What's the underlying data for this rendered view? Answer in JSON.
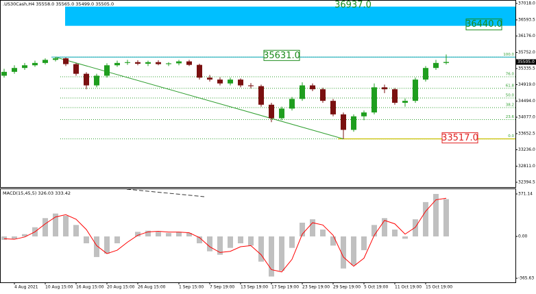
{
  "header": {
    "symbol_info": ".US30Cash,H4  35558.0 35565.0 35499.0 35505.0"
  },
  "chart_data": [
    {
      "type": "candlestick",
      "categories": [
        null,
        "4 Aug 2021",
        null,
        null,
        "10 Aug 15:00",
        null,
        null,
        "16 Aug 15:00",
        null,
        null,
        "20 Aug 15:00",
        null,
        null,
        "26 Aug 15:00",
        null,
        null,
        null,
        "1 Sep 15:00",
        null,
        null,
        "7 Sep 19:00",
        null,
        null,
        "13 Sep 19:00",
        null,
        null,
        "17 Sep 19:00",
        null,
        null,
        "23 Sep 19:00",
        null,
        null,
        "29 Sep 19:00",
        null,
        null,
        "5 Oct 19:00",
        null,
        null,
        "11 Oct 19:00",
        null,
        null,
        "15 Oct 19:00",
        null,
        null
      ],
      "open": [
        35150,
        35250,
        35350,
        35420,
        35480,
        35560,
        35600,
        35450,
        35200,
        34900,
        35150,
        35420,
        35480,
        35500,
        35460,
        35500,
        35450,
        35470,
        35520,
        35430,
        35100,
        35050,
        34950,
        35050,
        34900,
        34880,
        34400,
        34050,
        34300,
        34550,
        34900,
        34800,
        34500,
        34150,
        33750,
        34100,
        34200,
        34850,
        34800,
        34450,
        34500,
        35050,
        35350,
        35480
      ],
      "high": [
        35330,
        35420,
        35480,
        35540,
        35600,
        35631,
        35620,
        35480,
        35240,
        35200,
        35470,
        35540,
        35560,
        35550,
        35540,
        35550,
        35500,
        35560,
        35560,
        35460,
        35170,
        35110,
        35100,
        35080,
        34960,
        34920,
        34450,
        34350,
        34600,
        34980,
        34950,
        34840,
        34550,
        34200,
        34150,
        34250,
        34950,
        34920,
        34830,
        34560,
        35100,
        35400,
        35560,
        35700
      ],
      "low": [
        35100,
        35200,
        35300,
        35380,
        35440,
        35520,
        35400,
        35150,
        34800,
        34850,
        35100,
        35380,
        35430,
        35420,
        35400,
        35420,
        35400,
        35420,
        35400,
        35050,
        35000,
        34900,
        34900,
        34850,
        34820,
        34350,
        33950,
        34000,
        34250,
        34500,
        34750,
        34450,
        34100,
        33517,
        33700,
        34000,
        34150,
        34700,
        34400,
        34350,
        34450,
        35000,
        35300,
        35440
      ],
      "close": [
        35250,
        35350,
        35420,
        35480,
        35560,
        35600,
        35450,
        35200,
        34900,
        35150,
        35420,
        35480,
        35500,
        35460,
        35500,
        35450,
        35470,
        35520,
        35430,
        35100,
        35050,
        34950,
        35050,
        34900,
        34880,
        34400,
        34050,
        34300,
        34550,
        34900,
        34800,
        34500,
        34150,
        33750,
        34100,
        34200,
        34850,
        34800,
        34450,
        34500,
        35050,
        35350,
        35480,
        35505
      ],
      "up_color": "#1f9e1f",
      "down_color": "#7a1010",
      "ylim": [
        32270,
        37090
      ],
      "yticks": [
        {
          "value": 37018,
          "label": "37018.0"
        },
        {
          "value": 36593.5,
          "label": "36593.5"
        },
        {
          "value": 36176,
          "label": "36176.0"
        },
        {
          "value": 35752,
          "label": "35752.0"
        },
        {
          "value": 35335.5,
          "label": "35335.5"
        },
        {
          "value": 34919,
          "label": "34919.0"
        },
        {
          "value": 34494,
          "label": "34494.0"
        },
        {
          "value": 34077,
          "label": "34077.0"
        },
        {
          "value": 33652.5,
          "label": "33652.5"
        },
        {
          "value": 33236,
          "label": "33236.0"
        },
        {
          "value": 32811,
          "label": "32811.0"
        },
        {
          "value": 32394.5,
          "label": "32394.5"
        }
      ],
      "current_price": {
        "value": 35505,
        "label": "35505.0"
      },
      "target_zone": {
        "top": {
          "value": 36937,
          "label": "36937.0"
        },
        "bottom": {
          "value": 36440,
          "label": "36440.0"
        },
        "color": "#00bfff"
      },
      "resistance": {
        "value": 35631,
        "label": "35631.0"
      },
      "support": {
        "value": 33517,
        "label": "33517.0"
      },
      "fib_levels": [
        {
          "level": {
            "value": 100,
            "label": "100.0"
          },
          "price": 35631
        },
        {
          "level": {
            "value": 76,
            "label": "76.0"
          },
          "price": 35124
        },
        {
          "level": {
            "value": 61.8,
            "label": "61.8"
          },
          "price": 34823
        },
        {
          "level": {
            "value": 50,
            "label": "50.0"
          },
          "price": 34574
        },
        {
          "level": {
            "value": 38.2,
            "label": "38.2"
          },
          "price": 34325
        },
        {
          "level": {
            "value": 23.6,
            "label": "23.6"
          },
          "price": 34016
        },
        {
          "level": {
            "value": 0,
            "label": "0.0"
          },
          "price": 33517
        }
      ]
    },
    {
      "type": "macd",
      "title": "MACD(15,45,5) 326.03 333.42",
      "series": [
        {
          "color": "#c0c0c0",
          "values": [
            -30,
            -20,
            20,
            80,
            160,
            200,
            180,
            100,
            -60,
            -180,
            -150,
            -60,
            0,
            40,
            50,
            40,
            30,
            40,
            30,
            -60,
            -130,
            -160,
            -100,
            -60,
            -80,
            -220,
            -350,
            -300,
            -100,
            120,
            150,
            60,
            -80,
            -280,
            -250,
            -120,
            100,
            160,
            60,
            -20,
            150,
            300,
            371.14,
            326.03
          ]
        },
        {
          "color": "#ff0000",
          "values": [
            -20,
            -25,
            -5,
            40,
            110,
            170,
            190,
            150,
            60,
            -80,
            -150,
            -120,
            -50,
            10,
            40,
            45,
            38,
            38,
            32,
            -10,
            -90,
            -140,
            -130,
            -90,
            -80,
            -160,
            -290,
            -310,
            -200,
            20,
            120,
            100,
            10,
            -180,
            -260,
            -190,
            10,
            140,
            110,
            20,
            80,
            220,
            320,
            333.42
          ]
        }
      ],
      "ylim": [
        -401,
        413
      ],
      "yticks": [
        {
          "value": 371.14,
          "label": "371.14"
        },
        {
          "value": 0,
          "label": "0.00"
        },
        {
          "value": -365.63,
          "label": "-365.63"
        }
      ]
    }
  ]
}
